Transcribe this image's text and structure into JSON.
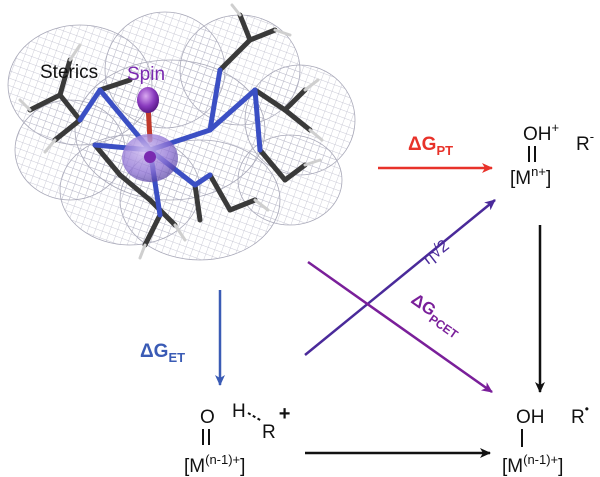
{
  "molecule": {
    "sterics_label": "Sterics",
    "spin_label": "Spin"
  },
  "paths": {
    "pt": {
      "prefix": "ΔG",
      "sub": "PT"
    },
    "et": {
      "prefix": "ΔG",
      "sub": "ET"
    },
    "pcet": {
      "prefix": "ΔG",
      "sub": "PCET"
    },
    "eta": "η√2"
  },
  "species": {
    "top_right": {
      "oh": "OH",
      "charge": "+",
      "r": "R",
      "r_sup": "-",
      "metal": "[M",
      "metal_sup": "n+",
      "metal_close": "]"
    },
    "bottom_left": {
      "o": "O",
      "h": "H",
      "r": "R",
      "charge": "+",
      "metal": "[M",
      "metal_sup": "(n-1)+",
      "metal_close": "]"
    },
    "bottom_right": {
      "oh": "OH",
      "r": "R",
      "radical": "•",
      "metal": "[M",
      "metal_sup": "(n-1)+",
      "metal_close": "]"
    }
  },
  "colors": {
    "pt": "#e8322a",
    "et": "#3a5bb5",
    "pcet": "#7a1f9a",
    "eta": "#4a2a9a",
    "black": "#111111",
    "mesh": "#b8b8c8",
    "nitrogen": "#3b4fc4",
    "carbon": "#3a3a3a",
    "spin": "#8a3bbf"
  }
}
